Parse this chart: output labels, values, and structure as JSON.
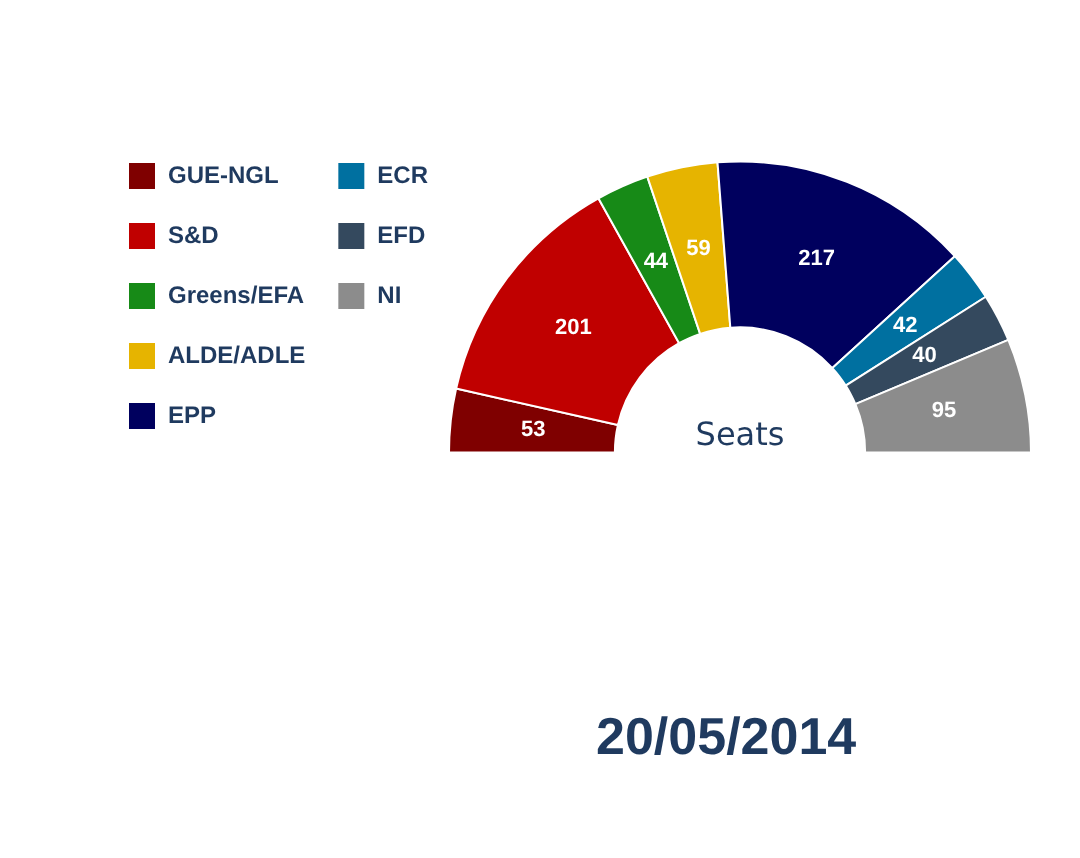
{
  "chart_data": {
    "type": "donut",
    "categories": [
      "GUE-NGL",
      "S&D",
      "Greens/EFA",
      "ALDE/ADLE",
      "EPP",
      "ECR",
      "EFD",
      "NI"
    ],
    "values": [
      53,
      201,
      44,
      59,
      217,
      42,
      40,
      95
    ],
    "colors": [
      "#7f0000",
      "#c00000",
      "#178a17",
      "#e6b400",
      "#00005e",
      "#0070a0",
      "#34495e",
      "#8c8c8c"
    ],
    "data_labels": true,
    "legend": "left",
    "annotations": [
      "Seats",
      "20/05/2014"
    ]
  }
}
